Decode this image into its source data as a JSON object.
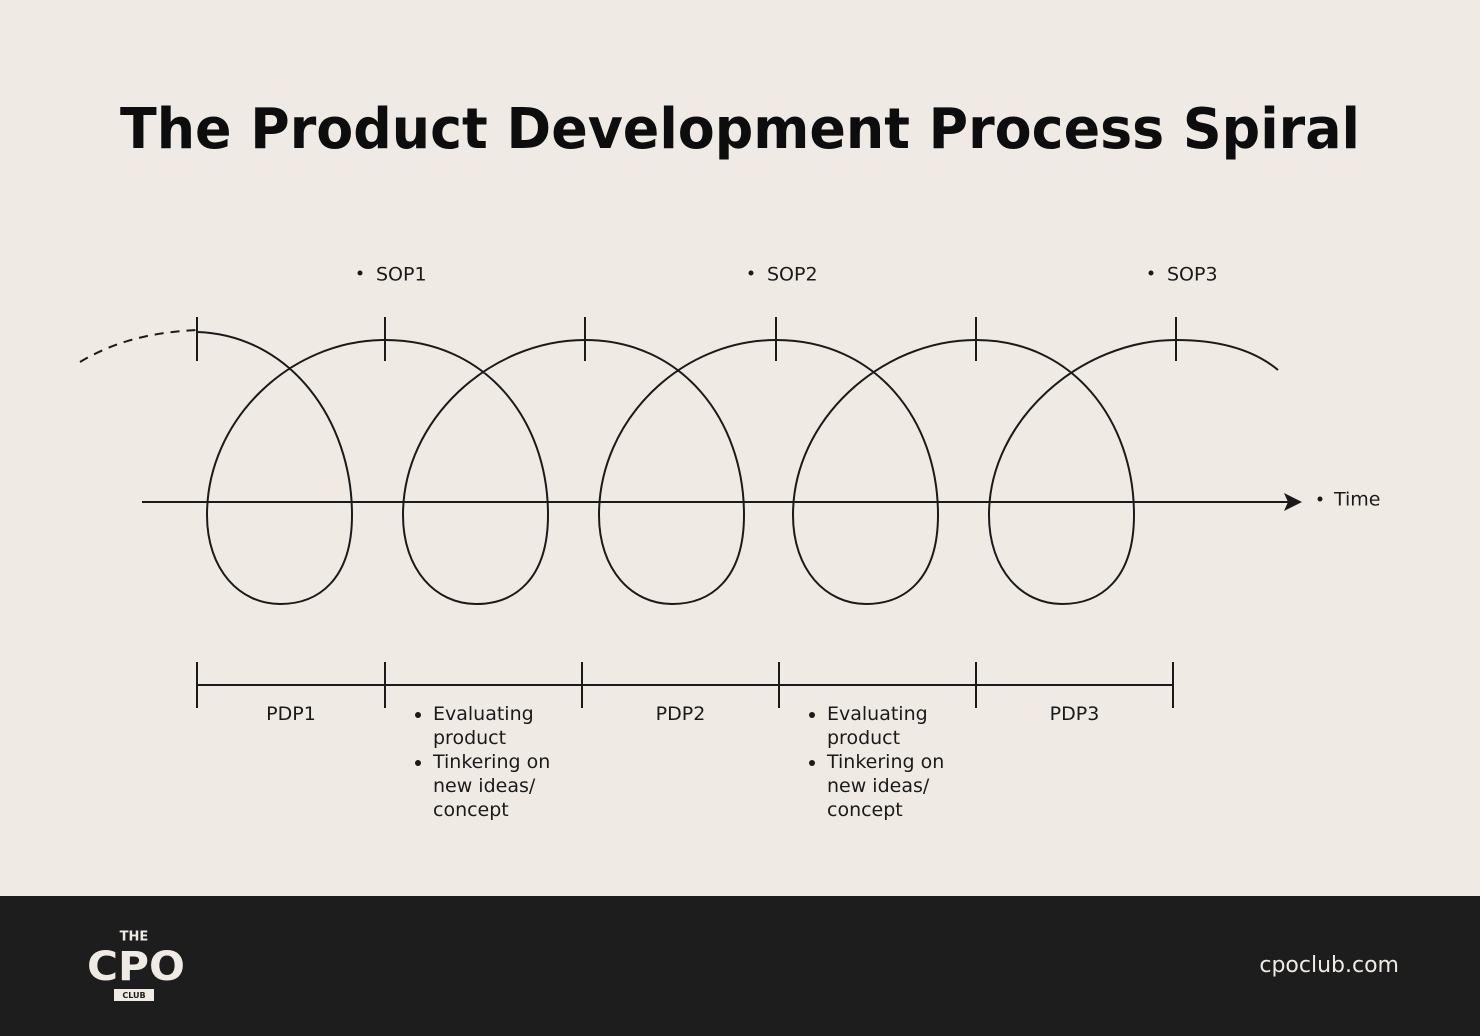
{
  "title": "The Product Development Process Spiral",
  "milestones": [
    "SOP1",
    "SOP2",
    "SOP3"
  ],
  "axis_label": "Time",
  "phases": [
    {
      "label": "PDP1"
    },
    {
      "items": [
        "Evaluating product",
        "Tinkering on new ideas/ concept"
      ]
    },
    {
      "label": "PDP2"
    },
    {
      "items": [
        "Evaluating product",
        "Tinkering on new ideas/ concept"
      ]
    },
    {
      "label": "PDP3"
    }
  ],
  "footer": {
    "logo": {
      "top": "THE",
      "main": "CPO",
      "bottom": "CLUB"
    },
    "url": "cpoclub.com"
  }
}
